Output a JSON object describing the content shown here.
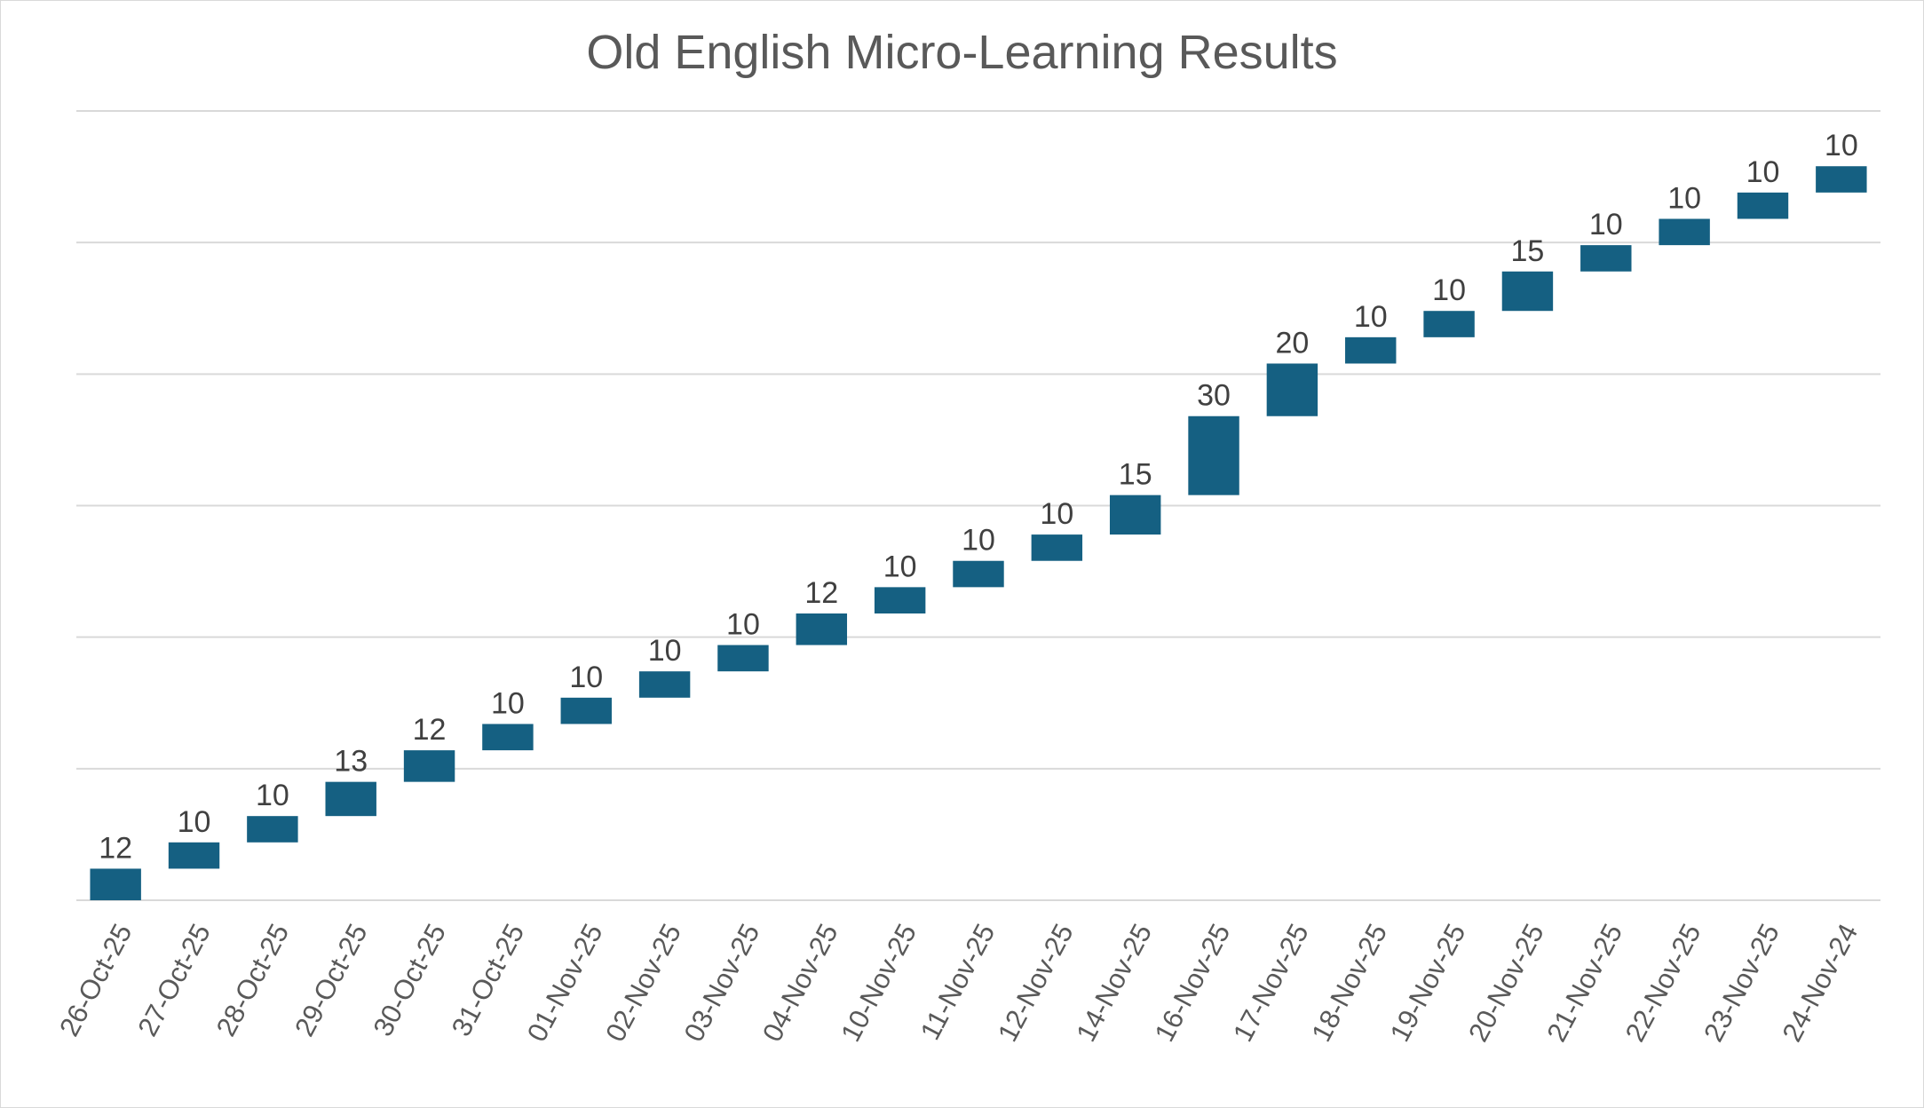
{
  "chart_data": {
    "type": "bar",
    "subtype": "waterfall",
    "title": "Old English Micro-Learning Results",
    "xlabel": "",
    "ylabel": "",
    "grid": true,
    "legend": "none",
    "ylim": [
      0,
      300
    ],
    "categories": [
      "26-Oct-25",
      "27-Oct-25",
      "28-Oct-25",
      "29-Oct-25",
      "30-Oct-25",
      "31-Oct-25",
      "01-Nov-25",
      "02-Nov-25",
      "03-Nov-25",
      "04-Nov-25",
      "10-Nov-25",
      "11-Nov-25",
      "12-Nov-25",
      "14-Nov-25",
      "16-Nov-25",
      "17-Nov-25",
      "18-Nov-25",
      "19-Nov-25",
      "20-Nov-25",
      "21-Nov-25",
      "22-Nov-25",
      "23-Nov-25",
      "24-Nov-24"
    ],
    "values": [
      12,
      10,
      10,
      13,
      12,
      10,
      10,
      10,
      10,
      12,
      10,
      10,
      10,
      15,
      30,
      20,
      10,
      10,
      15,
      10,
      10,
      10,
      10
    ],
    "bar_color": "#156082"
  }
}
